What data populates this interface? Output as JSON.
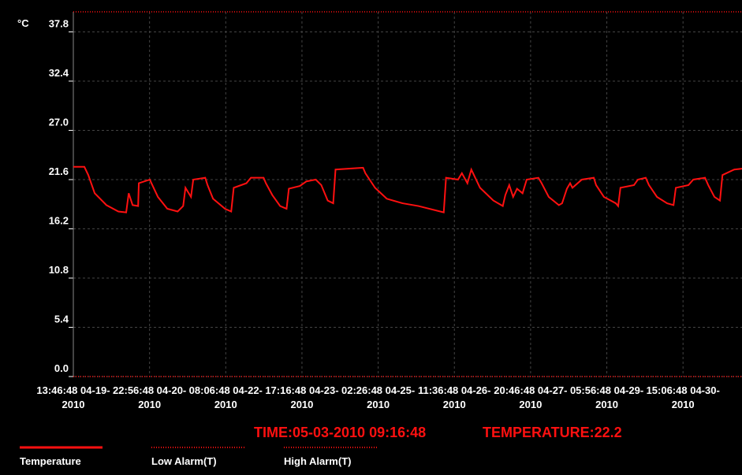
{
  "chart_data": {
    "type": "line",
    "y_unit": "°C",
    "series": [
      {
        "name": "Temperature",
        "color": "#ff1010",
        "x": [
          0,
          4.8,
          6.5,
          9.3,
          14.4,
          19.6,
          23.0,
          24.1,
          25.8,
          28.2,
          28.5,
          33.3,
          34.0,
          36.8,
          40.9,
          45.4,
          47.8,
          48.8,
          51.2,
          52.2,
          57.4,
          58.4,
          60.8,
          66.0,
          68.7,
          69.8,
          75.3,
          77.3,
          82.8,
          83.8,
          86.6,
          90.0,
          92.8,
          93.8,
          98.6,
          101.4,
          105.5,
          107.9,
          110.7,
          113.1,
          114.1,
          126.1,
          127.1,
          131.3,
          136.4,
          143.3,
          150.2,
          161.2,
          162.2,
          167.4,
          169.1,
          171.5,
          173.2,
          174.9,
          177.0,
          182.8,
          186.9,
          188.0,
          189.7,
          191.4,
          193.1,
          195.5,
          197.3,
          202.4,
          203.8,
          206.9,
          211.3,
          212.7,
          214.8,
          216.2,
          217.2,
          221.3,
          226.5,
          227.5,
          230.9,
          236.1,
          237.1,
          238.1,
          244.0,
          245.7,
          249.1,
          250.5,
          254.0,
          258.4,
          261.2,
          262.2,
          267.7,
          269.8,
          274.9,
          276.3,
          279.0,
          281.4,
          282.5,
          287.6,
          291
        ],
        "values": [
          23.0,
          23.0,
          22.1,
          20.1,
          18.8,
          18.1,
          18.0,
          20.1,
          18.8,
          18.7,
          21.2,
          21.6,
          21.2,
          19.7,
          18.4,
          18.1,
          18.7,
          20.7,
          19.7,
          21.6,
          21.8,
          21.0,
          19.5,
          18.4,
          18.1,
          20.7,
          21.2,
          21.8,
          21.8,
          21.2,
          19.9,
          18.7,
          18.4,
          20.6,
          20.9,
          21.4,
          21.6,
          21.0,
          19.3,
          19.0,
          22.7,
          22.9,
          22.3,
          20.7,
          19.5,
          19.0,
          18.7,
          18.0,
          21.8,
          21.6,
          22.3,
          21.2,
          22.7,
          21.8,
          20.7,
          19.3,
          18.7,
          19.9,
          21.0,
          19.7,
          20.6,
          20.1,
          21.6,
          21.8,
          21.2,
          19.7,
          18.8,
          19.0,
          20.6,
          21.2,
          20.7,
          21.6,
          21.8,
          21.0,
          19.7,
          19.0,
          18.7,
          20.7,
          21.0,
          21.6,
          21.8,
          21.0,
          19.7,
          19.0,
          18.8,
          20.7,
          21.0,
          21.6,
          21.8,
          21.0,
          19.7,
          19.3,
          22.1,
          22.7,
          22.8
        ]
      }
    ],
    "alarms": [
      {
        "name": "Low Alarm(T)",
        "value": 0,
        "color": "#ff1010"
      },
      {
        "name": "High Alarm(T)",
        "value": 40,
        "color": "#ff1010"
      }
    ],
    "xlim": [
      0,
      291
    ],
    "ylim": [
      0,
      40
    ],
    "xticks": [
      {
        "value": 0,
        "label": "13:46:48 04-19-2010"
      },
      {
        "value": 33.17,
        "label": "22:56:48 04-20-2010"
      },
      {
        "value": 66.33,
        "label": "08:06:48 04-22-2010"
      },
      {
        "value": 99.5,
        "label": "17:16:48 04-23-2010"
      },
      {
        "value": 132.67,
        "label": "02:26:48 04-25-2010"
      },
      {
        "value": 165.83,
        "label": "11:36:48 04-26-2010"
      },
      {
        "value": 199,
        "label": "20:46:48 04-27-2010"
      },
      {
        "value": 232.17,
        "label": "05:56:48 04-29-2010"
      },
      {
        "value": 265.33,
        "label": "15:06:48 04-30-2010"
      }
    ],
    "yticks": [
      {
        "value": 0,
        "label": "0.0"
      },
      5.4,
      10.8,
      16.2,
      21.6,
      {
        "value": 27,
        "label": "27.0"
      },
      32.4,
      37.8
    ],
    "grid": true,
    "readout": {
      "time": "TIME:05-03-2010 09:16:48",
      "value": "TEMPERATURE:22.2"
    }
  }
}
